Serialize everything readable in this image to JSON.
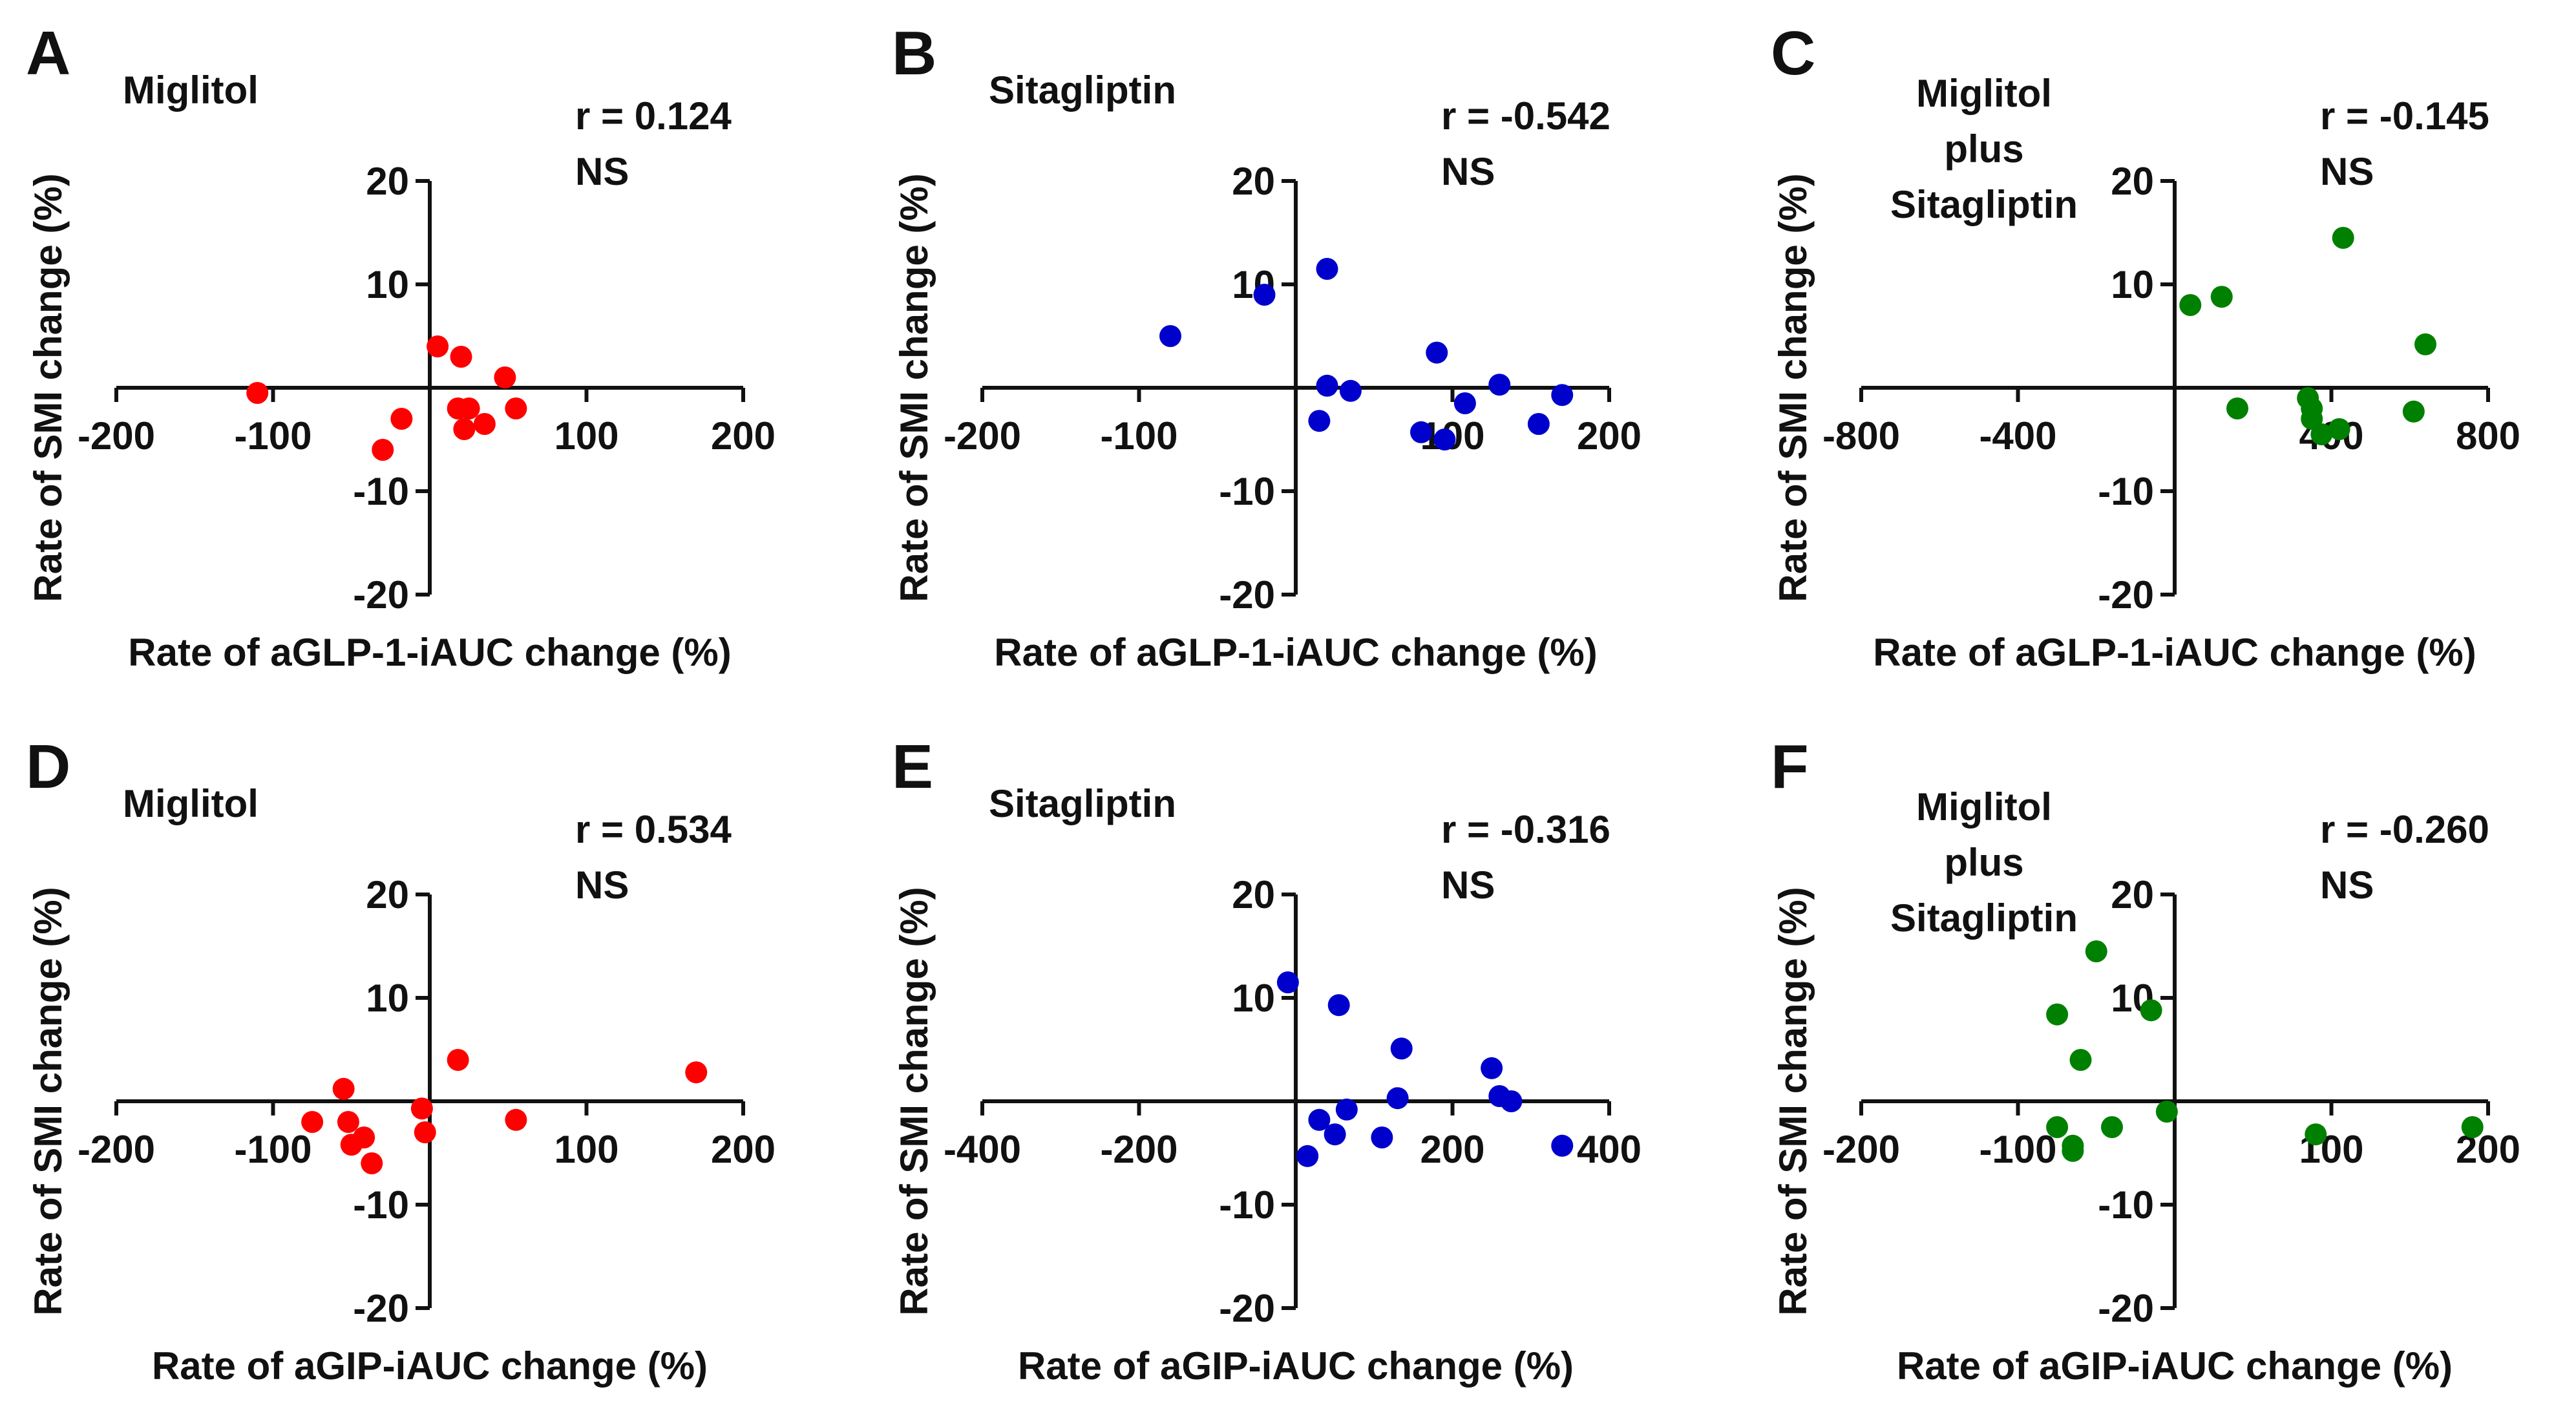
{
  "chart_data": [
    {
      "type": "scatter",
      "panel": "A",
      "title": "Miglitol",
      "stat": [
        "r = 0.124",
        "NS"
      ],
      "xlabel": "Rate of aGLP-1-iAUC  change (%)",
      "ylabel": "Rate of SMI change  (%)",
      "xlim": [
        -200,
        200
      ],
      "ylim": [
        -20,
        20
      ],
      "xticks": [
        -200,
        -100,
        100,
        200
      ],
      "xtick_labels": [
        "-200",
        "-100",
        "100",
        "200"
      ],
      "yticks": [
        20,
        10,
        -10,
        -20
      ],
      "ytick_labels": [
        "20",
        "10",
        "-10",
        "-20"
      ],
      "color": "#ff0000",
      "points": [
        [
          -110,
          -0.5
        ],
        [
          -30,
          -6
        ],
        [
          -18,
          -3
        ],
        [
          5,
          4
        ],
        [
          20,
          3
        ],
        [
          18,
          -2
        ],
        [
          25,
          -2
        ],
        [
          22,
          -4
        ],
        [
          35,
          -3.5
        ],
        [
          48,
          1
        ],
        [
          55,
          -2
        ]
      ]
    },
    {
      "type": "scatter",
      "panel": "B",
      "title": "Sitagliptin",
      "stat": [
        "r = -0.542",
        "NS"
      ],
      "xlabel": "Rate of aGLP-1-iAUC  change (%)",
      "ylabel": "Rate of SMI change  (%)",
      "xlim": [
        -200,
        200
      ],
      "ylim": [
        -20,
        20
      ],
      "xticks": [
        -200,
        -100,
        100,
        200
      ],
      "xtick_labels": [
        "-200",
        "-100",
        "100",
        "200"
      ],
      "yticks": [
        20,
        10,
        -10,
        -20
      ],
      "ytick_labels": [
        "20",
        "10",
        "-10",
        "-20"
      ],
      "color": "#0000cc",
      "points": [
        [
          -80,
          5
        ],
        [
          -20,
          9
        ],
        [
          20,
          11.5
        ],
        [
          20,
          0.2
        ],
        [
          35,
          -0.3
        ],
        [
          15,
          -3.2
        ],
        [
          80,
          -4.3
        ],
        [
          90,
          3.4
        ],
        [
          95,
          -5
        ],
        [
          108,
          -1.5
        ],
        [
          130,
          0.3
        ],
        [
          155,
          -3.5
        ],
        [
          170,
          -0.7
        ]
      ]
    },
    {
      "type": "scatter",
      "panel": "C",
      "title": "Miglitol plus Sitagliptin",
      "title_lines": [
        "Miglitol",
        "plus",
        "Sitagliptin"
      ],
      "stat": [
        "r = -0.145",
        "NS"
      ],
      "xlabel": "Rate of aGLP-1-iAUC  change (%)",
      "ylabel": "Rate of SMI change  (%)",
      "xlim": [
        -800,
        800
      ],
      "ylim": [
        -20,
        20
      ],
      "xticks": [
        -800,
        -400,
        400,
        800
      ],
      "xtick_labels": [
        "-800",
        "-400",
        "400",
        "800"
      ],
      "yticks": [
        20,
        10,
        -10,
        -20
      ],
      "ytick_labels": [
        "20",
        "10",
        "-10",
        "-20"
      ],
      "color": "#008000",
      "points": [
        [
          40,
          8
        ],
        [
          120,
          8.8
        ],
        [
          160,
          -2
        ],
        [
          340,
          -1
        ],
        [
          350,
          -2
        ],
        [
          350,
          -3
        ],
        [
          375,
          -4.5
        ],
        [
          420,
          -4
        ],
        [
          430,
          14.5
        ],
        [
          610,
          -2.3
        ],
        [
          640,
          4.2
        ]
      ]
    },
    {
      "type": "scatter",
      "panel": "D",
      "title": "Miglitol",
      "stat": [
        "r = 0.534",
        "NS"
      ],
      "xlabel": "Rate of aGIP-iAUC  change (%)",
      "ylabel": "Rate of SMI change  (%)",
      "xlim": [
        -200,
        200
      ],
      "ylim": [
        -20,
        20
      ],
      "xticks": [
        -200,
        -100,
        100,
        200
      ],
      "xtick_labels": [
        "-200",
        "-100",
        "100",
        "200"
      ],
      "yticks": [
        20,
        10,
        -10,
        -20
      ],
      "ytick_labels": [
        "20",
        "10",
        "-10",
        "-20"
      ],
      "color": "#ff0000",
      "points": [
        [
          -75,
          -2
        ],
        [
          -55,
          1.2
        ],
        [
          -52,
          -2
        ],
        [
          -50,
          -4.2
        ],
        [
          -42,
          -3.5
        ],
        [
          -37,
          -6
        ],
        [
          -5,
          -0.7
        ],
        [
          -3,
          -3
        ],
        [
          18,
          4
        ],
        [
          55,
          -1.8
        ],
        [
          170,
          2.8
        ]
      ]
    },
    {
      "type": "scatter",
      "panel": "E",
      "title": "Sitagliptin",
      "stat": [
        "r = -0.316",
        "NS"
      ],
      "xlabel": "Rate of aGIP-iAUC  change (%)",
      "ylabel": "Rate of SMI change  (%)",
      "xlim": [
        -400,
        400
      ],
      "ylim": [
        -20,
        20
      ],
      "xticks": [
        -400,
        -200,
        200,
        400
      ],
      "xtick_labels": [
        "-400",
        "-200",
        "200",
        "400"
      ],
      "yticks": [
        20,
        10,
        -10,
        -20
      ],
      "ytick_labels": [
        "20",
        "10",
        "-10",
        "-20"
      ],
      "color": "#0000cc",
      "points": [
        [
          -10,
          11.5
        ],
        [
          15,
          -5.3
        ],
        [
          30,
          -1.8
        ],
        [
          50,
          -3.2
        ],
        [
          55,
          9.3
        ],
        [
          65,
          -0.8
        ],
        [
          110,
          -3.5
        ],
        [
          130,
          0.3
        ],
        [
          135,
          5.1
        ],
        [
          250,
          3.2
        ],
        [
          260,
          0.5
        ],
        [
          275,
          0
        ],
        [
          340,
          -4.3
        ]
      ]
    },
    {
      "type": "scatter",
      "panel": "F",
      "title": "Miglitol plus Sitagliptin",
      "title_lines": [
        "Miglitol",
        "plus",
        "Sitagliptin"
      ],
      "stat": [
        "r = -0.260",
        "NS"
      ],
      "xlabel": "Rate of aGIP-iAUC  change (%)",
      "ylabel": "Rate of SMI change  (%)",
      "xlim": [
        -200,
        200
      ],
      "ylim": [
        -20,
        20
      ],
      "xticks": [
        -200,
        -100,
        100,
        200
      ],
      "xtick_labels": [
        "-200",
        "-100",
        "100",
        "200"
      ],
      "yticks": [
        20,
        10,
        -10,
        -20
      ],
      "ytick_labels": [
        "20",
        "10",
        "-10",
        "-20"
      ],
      "color": "#008000",
      "points": [
        [
          -75,
          8.4
        ],
        [
          -75,
          -2.5
        ],
        [
          -65,
          -4.3
        ],
        [
          -65,
          -4.8
        ],
        [
          -60,
          4
        ],
        [
          -50,
          14.5
        ],
        [
          -40,
          -2.5
        ],
        [
          -15,
          8.8
        ],
        [
          -5,
          -1
        ],
        [
          90,
          -3.2
        ],
        [
          190,
          -2.5
        ]
      ]
    }
  ]
}
